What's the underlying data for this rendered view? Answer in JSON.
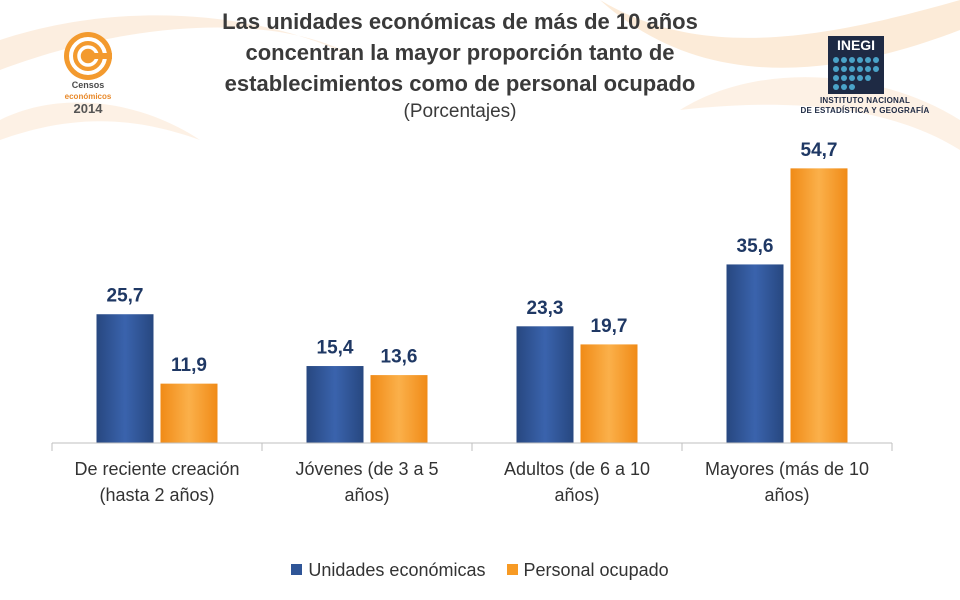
{
  "title": {
    "lines": [
      "Las unidades económicas de más de 10 años",
      "concentran la mayor proporción tanto de",
      "establecimientos como de personal ocupado"
    ],
    "subtitle": "(Porcentajes)"
  },
  "logos": {
    "censos": {
      "text": [
        "Censos",
        "económicos",
        "2014"
      ]
    },
    "inegi": {
      "text": "INEGI",
      "caption": [
        "INSTITUTO NACIONAL",
        "DE ESTADÍSTICA Y GEOGRAFÍA"
      ]
    }
  },
  "colors": {
    "series1": "#2f5597",
    "series2": "#f79a24",
    "axis": "#bfbfbf",
    "label": "#1f3864"
  },
  "chart_data": {
    "type": "bar",
    "categories": [
      [
        "De reciente creación",
        "(hasta 2 años)"
      ],
      [
        "Jóvenes (de 3 a 5",
        "años)"
      ],
      [
        "Adultos (de 6 a 10",
        "años)"
      ],
      [
        "Mayores (más de 10",
        "años)"
      ]
    ],
    "series": [
      {
        "name": "Unidades económicas",
        "values": [
          25.7,
          15.4,
          23.3,
          35.6
        ],
        "labels": [
          "25,7",
          "15,4",
          "23,3",
          "35,6"
        ]
      },
      {
        "name": "Personal ocupado",
        "values": [
          11.9,
          13.6,
          19.7,
          54.7
        ],
        "labels": [
          "11,9",
          "13,6",
          "19,7",
          "54,7"
        ]
      }
    ],
    "ylim": [
      0,
      60
    ],
    "legend": "bottom",
    "grid": false
  }
}
